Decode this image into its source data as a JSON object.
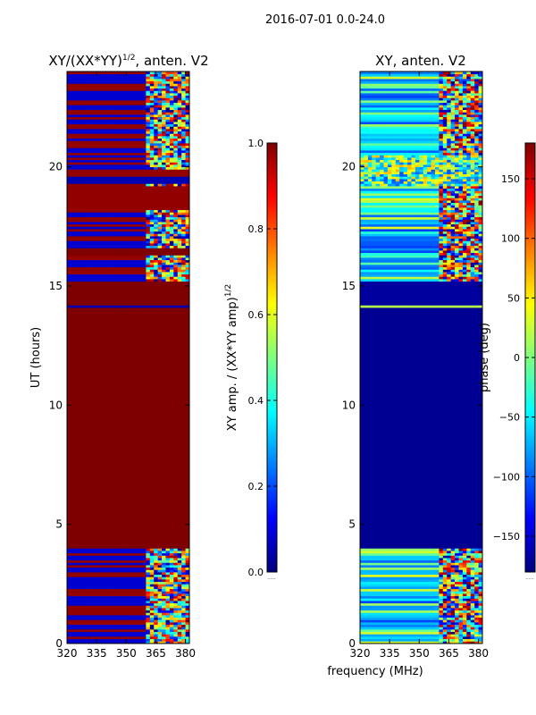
{
  "suptitle": "2016-07-01 0.0-24.0",
  "colorscale": {
    "name": "jet",
    "stops": [
      "#00007f",
      "#0000ff",
      "#007fff",
      "#00ffff",
      "#7fff7f",
      "#ffff00",
      "#ff7f00",
      "#ff0000",
      "#7f0000"
    ]
  },
  "chart_data": [
    {
      "type": "heatmap",
      "title_main": "XY/(XX*YY)",
      "title_sup": "1/2",
      "title_tail": ", anten. V2",
      "xlabel": "",
      "ylabel": "UT (hours)",
      "xlim": [
        320,
        382
      ],
      "ylim": [
        0,
        24
      ],
      "xticks": [
        "320",
        "335",
        "350",
        "365",
        "380"
      ],
      "xtick_values": [
        320,
        335,
        350,
        365,
        380
      ],
      "yticks": [
        "0",
        "5",
        "10",
        "15",
        "20"
      ],
      "ytick_values": [
        0,
        5,
        10,
        15,
        20
      ],
      "description": "Mostly saturated at 1.0 between 4 and 14 h; noisy rows near 0-4 h, 15-16 h, 16-19 h and 19-24 h; strongest structure at 361-380 MHz.",
      "colorbar": {
        "label_main": "XY amp. / (XX*YY amp)",
        "label_sup": "1/2",
        "range": [
          0,
          1
        ],
        "ticks": [
          "0.0",
          "0.2",
          "0.4",
          "0.6",
          "0.8",
          "1.0"
        ],
        "tick_values": [
          0,
          0.2,
          0.4,
          0.6,
          0.8,
          1.0
        ],
        "under_label": "......"
      }
    },
    {
      "type": "heatmap",
      "title": "XY, anten. V2",
      "xlabel": "frequency (MHz)",
      "ylabel": "",
      "xlim": [
        320,
        382
      ],
      "ylim": [
        0,
        24
      ],
      "xticks": [
        "320",
        "335",
        "350",
        "365",
        "380"
      ],
      "xtick_values": [
        320,
        335,
        350,
        365,
        380
      ],
      "yticks": [
        "0",
        "5",
        "10",
        "15",
        "20"
      ],
      "ytick_values": [
        0,
        5,
        10,
        15,
        20
      ],
      "description": "Phase near -180 deg (dark blue) 4-14 h; thin green line at 14.2 h; mixed phase rows 0-4 h and 15-24 h.",
      "colorbar": {
        "label": "phase (deg)",
        "range": [
          -180,
          180
        ],
        "ticks": [
          "−150",
          "−100",
          "−50",
          "0",
          "50",
          "100",
          "150"
        ],
        "tick_values": [
          -150,
          -100,
          -50,
          0,
          50,
          100,
          150
        ],
        "under_label": "......"
      }
    }
  ]
}
